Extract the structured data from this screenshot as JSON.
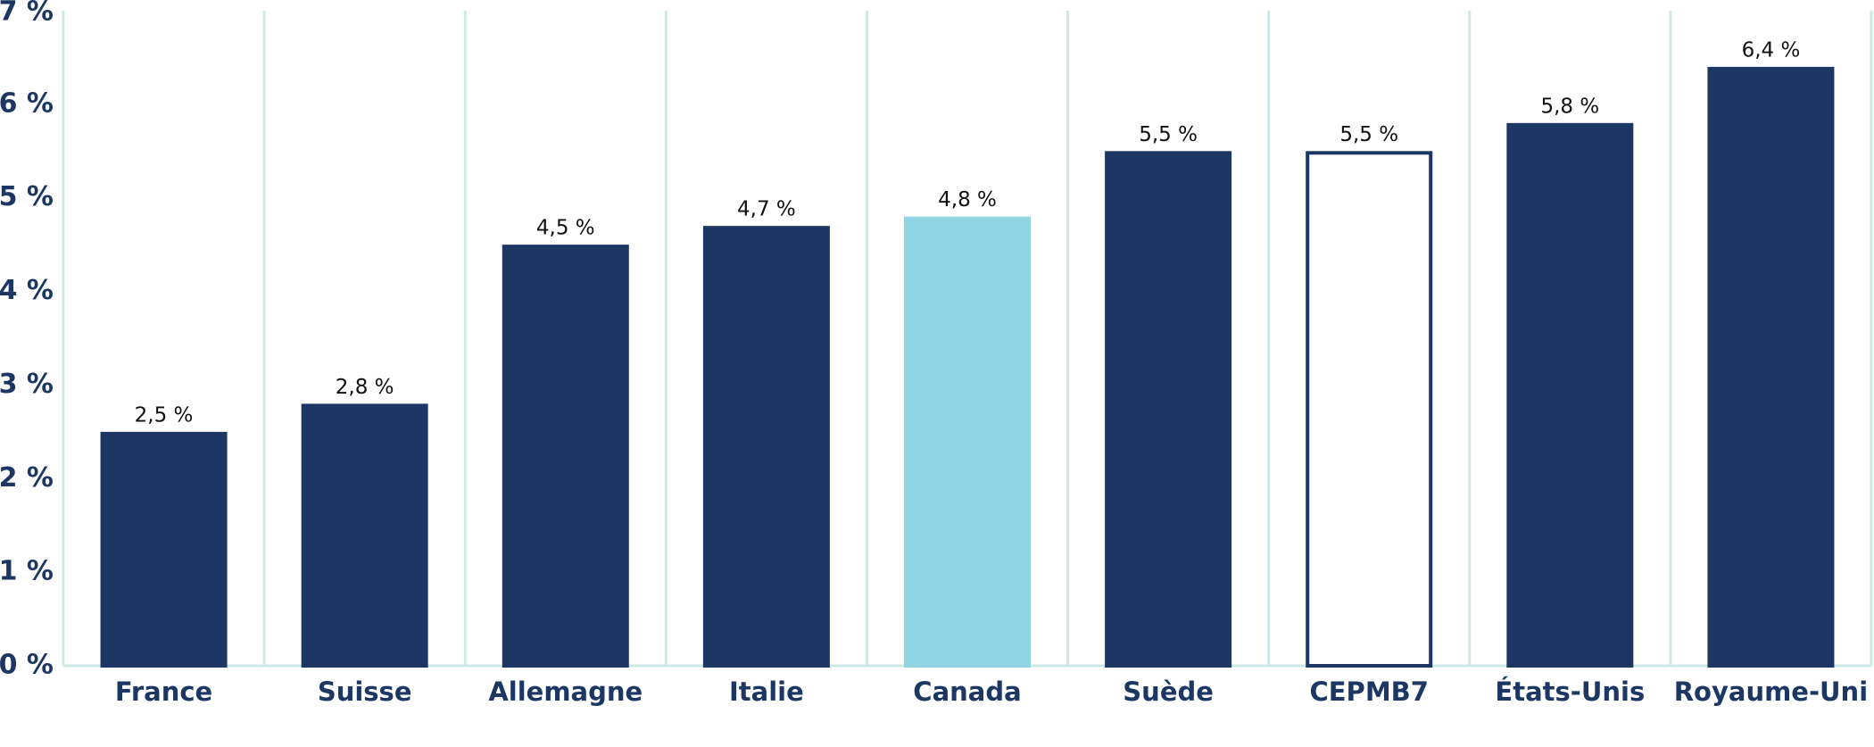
{
  "chart_data": {
    "type": "bar",
    "categories": [
      "France",
      "Suisse",
      "Allemagne",
      "Italie",
      "Canada",
      "Suède",
      "CEPMB7",
      "États-Unis",
      "Royaume-Uni"
    ],
    "values": [
      2.5,
      2.8,
      4.5,
      4.7,
      4.8,
      5.5,
      5.5,
      5.8,
      6.4
    ],
    "value_labels": [
      "2,5 %",
      "2,8 %",
      "4,5 %",
      "4,7 %",
      "4,8 %",
      "5,5 %",
      "5,5 %",
      "5,8 %",
      "6,4 %"
    ],
    "colors": [
      "#1c3764",
      "#1c3764",
      "#1c3764",
      "#1c3764",
      "#8fd5e3",
      "#1c3764",
      "#ffffff",
      "#1c3764",
      "#1c3764"
    ],
    "edgecolors": [
      "#1c3764",
      "#1c3764",
      "#1c3764",
      "#1c3764",
      "#8fd5e3",
      "#1c3764",
      "#1c3764",
      "#1c3764",
      "#1c3764"
    ],
    "ylim": [
      0,
      7
    ],
    "yticks": [
      {
        "value": 0,
        "label": "0 %"
      },
      {
        "value": 1,
        "label": "1 %"
      },
      {
        "value": 2,
        "label": "2 %"
      },
      {
        "value": 3,
        "label": "3 %"
      },
      {
        "value": 4,
        "label": "4 %"
      },
      {
        "value": 5,
        "label": "5 %"
      },
      {
        "value": 6,
        "label": "6 %"
      },
      {
        "value": 7,
        "label": "7 %"
      }
    ],
    "grid": false
  }
}
